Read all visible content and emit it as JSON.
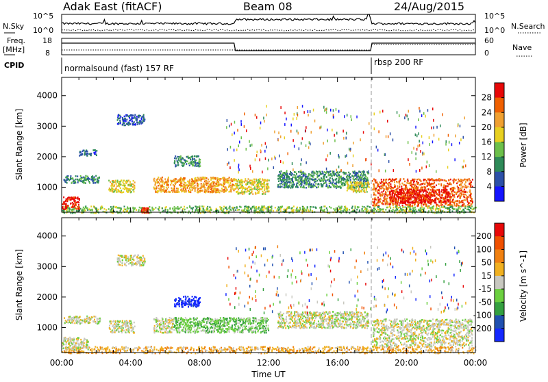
{
  "header": {
    "title": "Adak East (fitACF)",
    "beam": "Beam 08",
    "date": "24/Aug/2015"
  },
  "summary_panels": {
    "nsky_label": "N.Sky",
    "nsky_ticks": [
      "10^5",
      "10^0"
    ],
    "nsearch_label": "N.Search",
    "nsearch_ticks": [
      "10^5",
      "10^0"
    ],
    "freq_label_line1": "Freq.",
    "freq_label_line2": "[MHz]",
    "freq_ticks": [
      "18",
      "8"
    ],
    "nave_label": "Nave",
    "nave_ticks": [
      "60",
      "0"
    ],
    "cpid_label": "CPID",
    "cpid_modes": [
      {
        "text": "normalsound (fast) 157 RF",
        "start_hour": 0
      },
      {
        "text": "rbsp 200 RF",
        "start_hour": 18
      }
    ]
  },
  "chart_data": [
    {
      "type": "heatmap",
      "quantity": "Power",
      "ylabel": "Slant Range [km]",
      "xlabel": "Time UT",
      "xlim_hours": [
        0,
        24
      ],
      "ylim_km": [
        180,
        4600
      ],
      "x_ticks": [
        "00:00",
        "04:00",
        "08:00",
        "12:00",
        "16:00",
        "20:00",
        "00:00"
      ],
      "y_ticks": [
        "1000",
        "2000",
        "3000",
        "4000"
      ],
      "colorbar": {
        "label": "Power [dB]",
        "ticks": [
          "28",
          "24",
          "20",
          "16",
          "12",
          "8",
          "4"
        ],
        "levels": [
          {
            "range": [
              0,
              4
            ],
            "color": "#1414ff"
          },
          {
            "range": [
              4,
              8
            ],
            "color": "#2c50a8"
          },
          {
            "range": [
              8,
              12
            ],
            "color": "#2e8a58"
          },
          {
            "range": [
              12,
              16
            ],
            "color": "#6cc04a"
          },
          {
            "range": [
              16,
              20
            ],
            "color": "#e8d020"
          },
          {
            "range": [
              20,
              24
            ],
            "color": "#f0a030"
          },
          {
            "range": [
              24,
              28
            ],
            "color": "#f06000"
          },
          {
            "range": [
              28,
              32
            ],
            "color": "#e80808"
          }
        ]
      },
      "regions": [
        {
          "t": [
            0.1,
            2.2
          ],
          "km": [
            1150,
            1400
          ],
          "level": 2
        },
        {
          "t": [
            2.7,
            4.2
          ],
          "km": [
            850,
            1250
          ],
          "level": 4
        },
        {
          "t": [
            5.3,
            10.0
          ],
          "km": [
            850,
            1350
          ],
          "level": 5
        },
        {
          "t": [
            10.0,
            12.0
          ],
          "km": [
            800,
            1300
          ],
          "level": 4
        },
        {
          "t": [
            6.5,
            8.0
          ],
          "km": [
            1700,
            2050
          ],
          "level": 2
        },
        {
          "t": [
            3.2,
            4.8
          ],
          "km": [
            3050,
            3400
          ],
          "level": 1
        },
        {
          "t": [
            1.0,
            2.0
          ],
          "km": [
            2050,
            2250
          ],
          "level": 1
        },
        {
          "t": [
            12.5,
            17.8
          ],
          "km": [
            1000,
            1550
          ],
          "level": 2
        },
        {
          "t": [
            16.5,
            17.8
          ],
          "km": [
            850,
            1200
          ],
          "level": 4
        },
        {
          "t": [
            18.0,
            23.8
          ],
          "km": [
            400,
            1300
          ],
          "level": 6
        },
        {
          "t": [
            19.0,
            22.5
          ],
          "km": [
            500,
            950
          ],
          "level": 7
        },
        {
          "t": [
            0.0,
            24.0
          ],
          "km": [
            180,
            400
          ],
          "level": 3
        },
        {
          "t": [
            0.0,
            1.0
          ],
          "km": [
            300,
            700
          ],
          "level": 7
        },
        {
          "t": [
            4.6,
            5.0
          ],
          "km": [
            180,
            350
          ],
          "level": 7
        }
      ]
    },
    {
      "type": "heatmap",
      "quantity": "Velocity",
      "ylabel": "Slant Range [km]",
      "xlabel": "Time UT",
      "xlim_hours": [
        0,
        24
      ],
      "ylim_km": [
        180,
        4600
      ],
      "x_ticks": [
        "00:00",
        "04:00",
        "08:00",
        "12:00",
        "16:00",
        "20:00",
        "00:00"
      ],
      "y_ticks": [
        "1000",
        "2000",
        "3000",
        "4000"
      ],
      "colorbar": {
        "label": "Velocity [m s^-1]",
        "ticks": [
          "200",
          "100",
          "50",
          "15",
          "-15",
          "-50",
          "-100",
          "-200"
        ],
        "levels": [
          {
            "range": [
              200,
              250
            ],
            "color": "#1428ff"
          },
          {
            "range": [
              100,
              200
            ],
            "color": "#2050b0"
          },
          {
            "range": [
              50,
              100
            ],
            "color": "#34a040"
          },
          {
            "range": [
              15,
              50
            ],
            "color": "#6cd040"
          },
          {
            "range": [
              -15,
              15
            ],
            "color": "#c8c8c0"
          },
          {
            "range": [
              -50,
              -15
            ],
            "color": "#f0b020"
          },
          {
            "range": [
              -100,
              -50
            ],
            "color": "#f08010"
          },
          {
            "range": [
              -200,
              -100
            ],
            "color": "#f05000"
          },
          {
            "range": [
              -250,
              -200
            ],
            "color": "#e80808"
          }
        ]
      },
      "regions": [
        {
          "t": [
            0.1,
            2.2
          ],
          "km": [
            1150,
            1400
          ],
          "level": 4
        },
        {
          "t": [
            2.7,
            4.2
          ],
          "km": [
            850,
            1250
          ],
          "level": 4
        },
        {
          "t": [
            5.3,
            6.5
          ],
          "km": [
            850,
            1350
          ],
          "level": 4
        },
        {
          "t": [
            6.5,
            12.0
          ],
          "km": [
            850,
            1350
          ],
          "level": 3
        },
        {
          "t": [
            6.5,
            8.0
          ],
          "km": [
            1700,
            2050
          ],
          "level": 0
        },
        {
          "t": [
            3.2,
            4.8
          ],
          "km": [
            3050,
            3400
          ],
          "level": 4
        },
        {
          "t": [
            12.5,
            17.8
          ],
          "km": [
            1000,
            1550
          ],
          "level": 4
        },
        {
          "t": [
            18.0,
            23.8
          ],
          "km": [
            400,
            1300
          ],
          "level": 4
        },
        {
          "t": [
            0.0,
            24.0
          ],
          "km": [
            180,
            400
          ],
          "level": 5
        },
        {
          "t": [
            0.0,
            1.5
          ],
          "km": [
            300,
            700
          ],
          "level": 4
        }
      ]
    }
  ]
}
